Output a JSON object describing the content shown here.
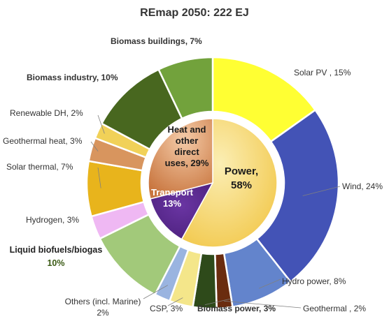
{
  "chart_data": {
    "type": "pie",
    "subtype": "nested-donut",
    "title": "REmap 2050: 222 EJ",
    "inner_ring": [
      {
        "key": "power",
        "lines": [
          "Power,",
          "58%"
        ],
        "value": 58,
        "color": "#f2c84b"
      },
      {
        "key": "transport",
        "lines": [
          "Transport",
          "13%"
        ],
        "value": 13,
        "color": "#5a2a8f"
      },
      {
        "key": "heat",
        "lines": [
          "Heat and",
          "other",
          "direct",
          "uses, 29%"
        ],
        "value": 29,
        "color": "#d88a50"
      }
    ],
    "outer_ring": [
      {
        "key": "solar-pv",
        "name": "Solar PV",
        "pct_label": " , 15%",
        "value": 15,
        "color": "#ffff33"
      },
      {
        "key": "wind",
        "name": "Wind",
        "pct_label": ", 24%",
        "value": 24,
        "color": "#4353b6"
      },
      {
        "key": "hydro",
        "name": "Hydro power",
        "pct_label": ", 8%",
        "value": 8,
        "color": "#6384cc"
      },
      {
        "key": "geothermal-power",
        "name": "Geothermal ",
        "pct_label": ", 2%",
        "value": 2,
        "color": "#6a2c0f"
      },
      {
        "key": "biomass-power",
        "name": "Biomass power",
        "pct_label": ", 3%",
        "value": 3,
        "color": "#2e4a1a",
        "bold": true
      },
      {
        "key": "csp",
        "name": "CSP",
        "pct_label": ", 3%",
        "value": 3,
        "color": "#f4e68a"
      },
      {
        "key": "others",
        "name": "Others (incl. Marine)",
        "pct_label": ", 2%",
        "value": 2,
        "color": "#9ab4e0"
      },
      {
        "key": "liquid-biofuels",
        "name": "Liquid biofuels/biogas",
        "pct_label": ", 10%",
        "value": 10,
        "color": "#a2c97a",
        "bold": true
      },
      {
        "key": "hydrogen",
        "name": "Hydrogen",
        "pct_label": ", 3%",
        "value": 3,
        "color": "#efb8f3"
      },
      {
        "key": "solar-thermal",
        "name": "Solar thermal",
        "pct_label": ", 7%",
        "value": 7,
        "color": "#e8b41c"
      },
      {
        "key": "geothermal-heat",
        "name": "Geothermal heat",
        "pct_label": ", 3%",
        "value": 3,
        "color": "#d8955e"
      },
      {
        "key": "renewable-dh",
        "name": "Renewable DH",
        "pct_label": ", 2%",
        "value": 2,
        "color": "#f1d158"
      },
      {
        "key": "biomass-industry",
        "name": "Biomass industry",
        "pct_label": ", 10%",
        "value": 10,
        "color": "#48671f",
        "bold": true
      },
      {
        "key": "biomass-buildings",
        "name": "Biomass buildings",
        "pct_label": ", 7%",
        "value": 7,
        "color": "#72a23c",
        "bold": true
      }
    ]
  }
}
